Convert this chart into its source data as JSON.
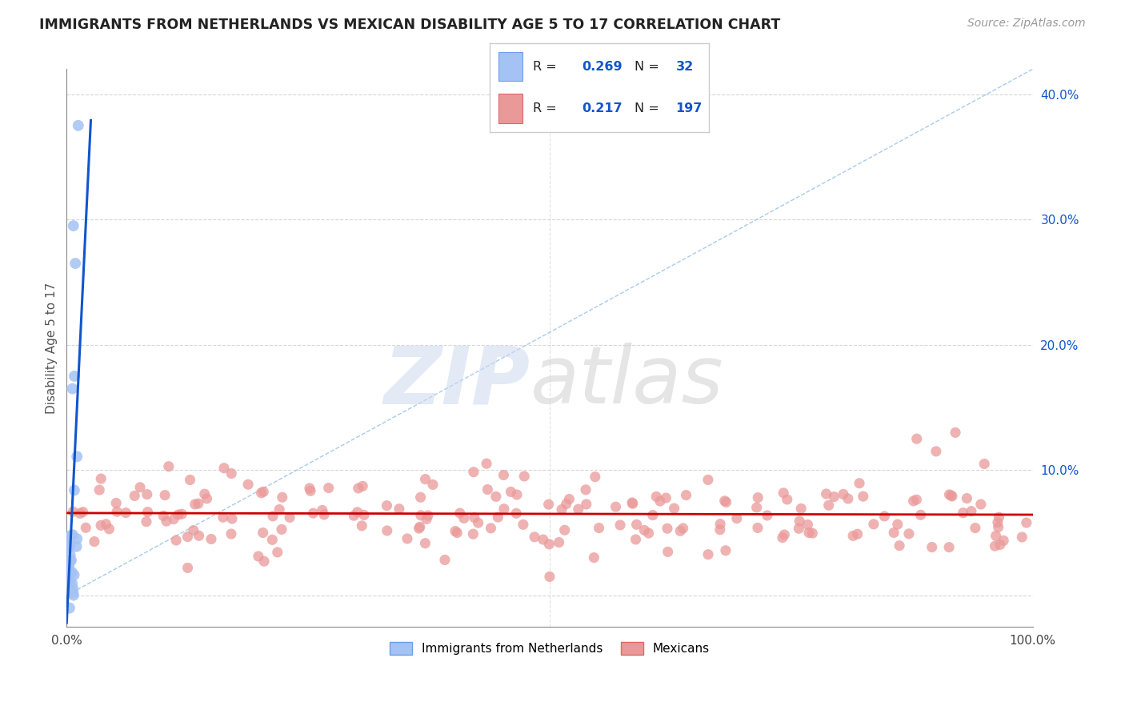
{
  "title": "IMMIGRANTS FROM NETHERLANDS VS MEXICAN DISABILITY AGE 5 TO 17 CORRELATION CHART",
  "source": "Source: ZipAtlas.com",
  "ylabel": "Disability Age 5 to 17",
  "x_min": 0.0,
  "x_max": 1.0,
  "y_min": -0.025,
  "y_max": 0.42,
  "netherlands_R": 0.269,
  "netherlands_N": 32,
  "mexicans_R": 0.217,
  "mexicans_N": 197,
  "netherlands_color": "#a4c2f4",
  "netherlands_edge_color": "#6d9eeb",
  "mexicans_color": "#ea9999",
  "mexicans_edge_color": "#e06666",
  "netherlands_line_color": "#1155cc",
  "mexicans_line_color": "#cc0000",
  "trendline_dashed_color": "#9fc5e8",
  "legend_label_netherlands": "Immigrants from Netherlands",
  "legend_label_mexicans": "Mexicans",
  "background_color": "#ffffff",
  "grid_color": "#cccccc",
  "right_tick_color": "#1155cc",
  "left_axis_color": "#888888",
  "bottom_axis_color": "#888888"
}
